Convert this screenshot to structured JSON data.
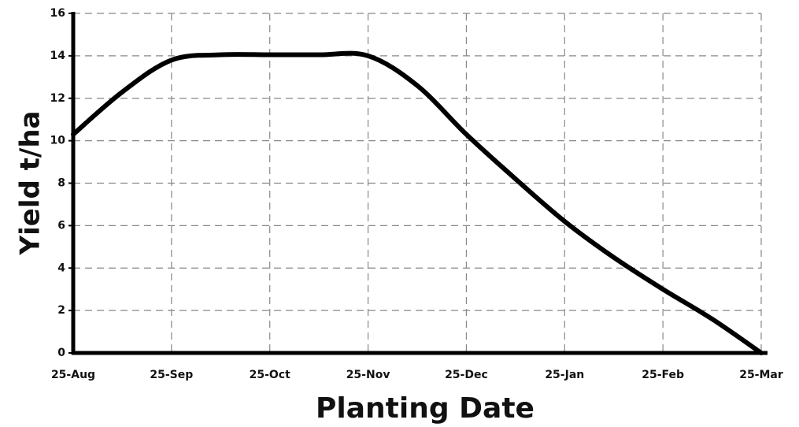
{
  "chart_data": {
    "type": "line",
    "x_label": "Planting Date",
    "y_label": "Yield t/ha",
    "categories": [
      "25-Aug",
      null,
      "25-Sep",
      null,
      "25-Oct",
      null,
      "25-Nov",
      null,
      "25-Dec",
      null,
      "25-Jan",
      null,
      "25-Feb",
      null,
      "25-Mar"
    ],
    "series": [
      {
        "color": "#000000",
        "values": [
          10.3,
          12.3,
          13.8,
          14.05,
          14.05,
          14.05,
          14.0,
          12.6,
          10.3,
          8.2,
          6.2,
          4.5,
          3.0,
          1.6,
          0
        ]
      }
    ],
    "ylim": [
      0,
      16
    ],
    "yticks": [
      0,
      2,
      4,
      6,
      8,
      10,
      12,
      14,
      16
    ],
    "grid": true
  }
}
